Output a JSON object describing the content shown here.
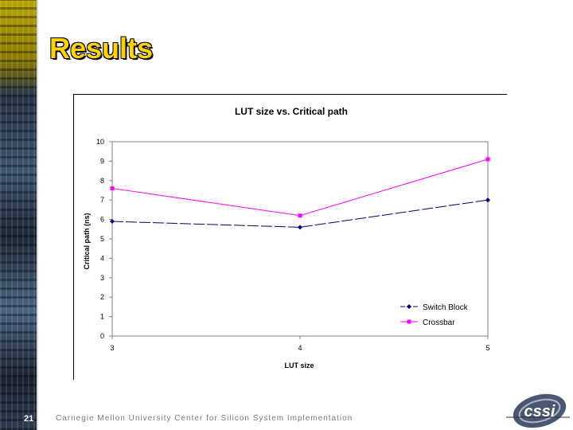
{
  "slide": {
    "title": "Results",
    "number": "21",
    "footer": "Carnegie Mellon University Center for Silicon System Implementation",
    "logo_text": "cssi"
  },
  "chart_data": {
    "type": "line",
    "title": "LUT size vs. Critical path",
    "xlabel": "LUT size",
    "ylabel": "Critical path (ns)",
    "x": [
      3,
      4,
      5
    ],
    "ylim": [
      0,
      10
    ],
    "yticks": [
      0,
      1,
      2,
      3,
      4,
      5,
      6,
      7,
      8,
      9,
      10
    ],
    "grid": false,
    "legend_position": "bottom-right",
    "series": [
      {
        "name": "Switch Block",
        "values": [
          5.9,
          5.6,
          7.0
        ],
        "color": "#000080",
        "marker": "diamond",
        "dash": "dashed"
      },
      {
        "name": "Crossbar",
        "values": [
          7.6,
          6.2,
          9.1
        ],
        "color": "#ff00ff",
        "marker": "square",
        "dash": "solid"
      }
    ]
  }
}
